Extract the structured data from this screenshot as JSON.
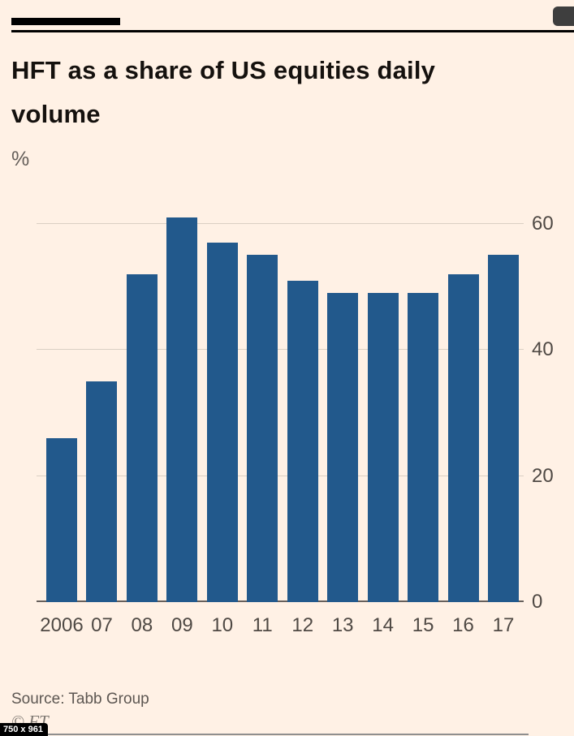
{
  "header": {
    "title": "HFT as a share of US equities daily volume",
    "unit_label": "%"
  },
  "chart_data": {
    "type": "bar",
    "title": "HFT as a share of US equities daily volume",
    "ylabel": "%",
    "categories": [
      "2006",
      "07",
      "08",
      "09",
      "10",
      "11",
      "12",
      "13",
      "14",
      "15",
      "16",
      "17"
    ],
    "values": [
      26,
      35,
      52,
      61,
      57,
      55,
      51,
      49,
      49,
      49,
      52,
      55
    ],
    "ylim": [
      0,
      62
    ],
    "yticks": [
      0,
      20,
      40,
      60
    ],
    "grid": true,
    "legend": "none",
    "bar_color": "#22598c",
    "gridline_color": "#dacfc4",
    "baseline_color": "#66605c"
  },
  "footer": {
    "source": "Source: Tabb Group",
    "copyright": "© FT"
  },
  "overlay": {
    "dimension_badge": "750 x 961"
  }
}
